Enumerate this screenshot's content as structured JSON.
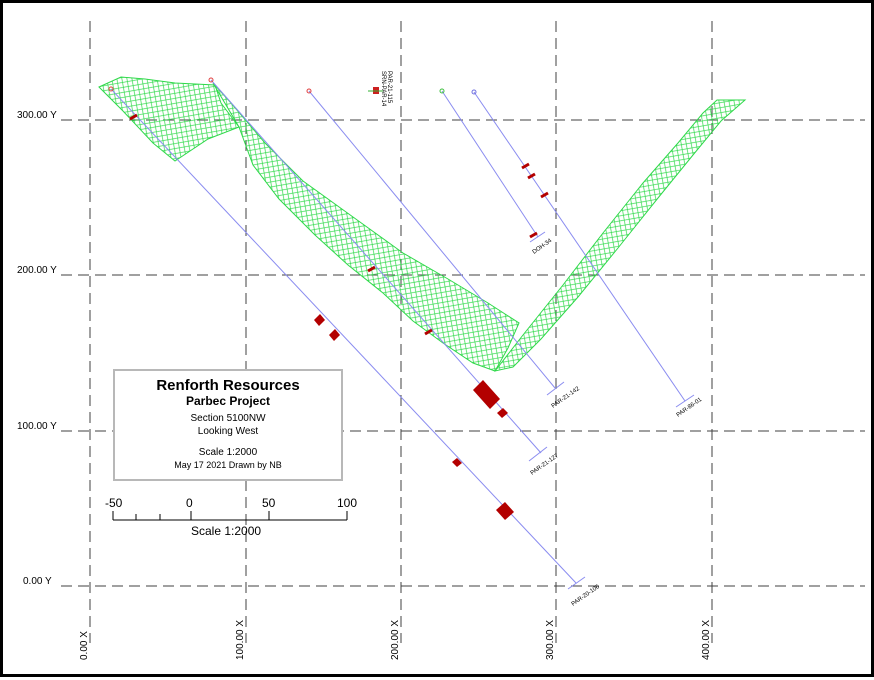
{
  "title_block": {
    "company": "Renforth Resources",
    "project": "Parbec Project",
    "section": "Section 5100NW",
    "view": "Looking West",
    "scale": "Scale 1:2000",
    "drawn": "May 17 2021 Drawn by NB"
  },
  "scale_bar": {
    "ticks": [
      "-50",
      "0",
      "50",
      "100"
    ],
    "label": "Scale 1:2000"
  },
  "grid": {
    "x_labels": [
      "0.00 X",
      "100.00 X",
      "200.00 X",
      "300.00 X",
      "400.00 X"
    ],
    "y_labels": [
      "300.00 Y",
      "200.00 Y",
      "100.00 Y",
      "0.00 Y"
    ]
  },
  "drill_holes": [
    {
      "id": "PAR-20-106",
      "collar": [
        2,
        320
      ],
      "end": [
        312,
        0
      ],
      "collar_color": "#e04040"
    },
    {
      "id": "PAR-21-127",
      "collar": [
        78,
        320
      ],
      "end": [
        290,
        92
      ],
      "collar_color": "#e04040"
    },
    {
      "id": "PAR-21-142",
      "collar": [
        142,
        318
      ],
      "end": [
        300,
        128
      ],
      "collar_color": "#e04040"
    },
    {
      "id": "PAR-86-01",
      "collar": [
        248,
        318
      ],
      "end": [
        384,
        122
      ],
      "collar_color": "#7070e0"
    },
    {
      "id": "DOH-34",
      "collar": [
        227,
        318
      ],
      "end": [
        287,
        226
      ],
      "collar_color": "#40c040"
    },
    {
      "id": "PAR-21-115",
      "collar": [
        185,
        320
      ],
      "end": [
        185,
        318
      ],
      "collar_color": "#e04040"
    },
    {
      "id": "SRN-PAR-14",
      "collar": [
        186,
        322
      ],
      "end": [
        186,
        320
      ],
      "collar_color": "#e04040"
    }
  ],
  "colors": {
    "grid": "#404040",
    "drill_trace": "#8a8cf0",
    "mineralized_zone": "#2fd94a",
    "intercept": "#b30000"
  }
}
